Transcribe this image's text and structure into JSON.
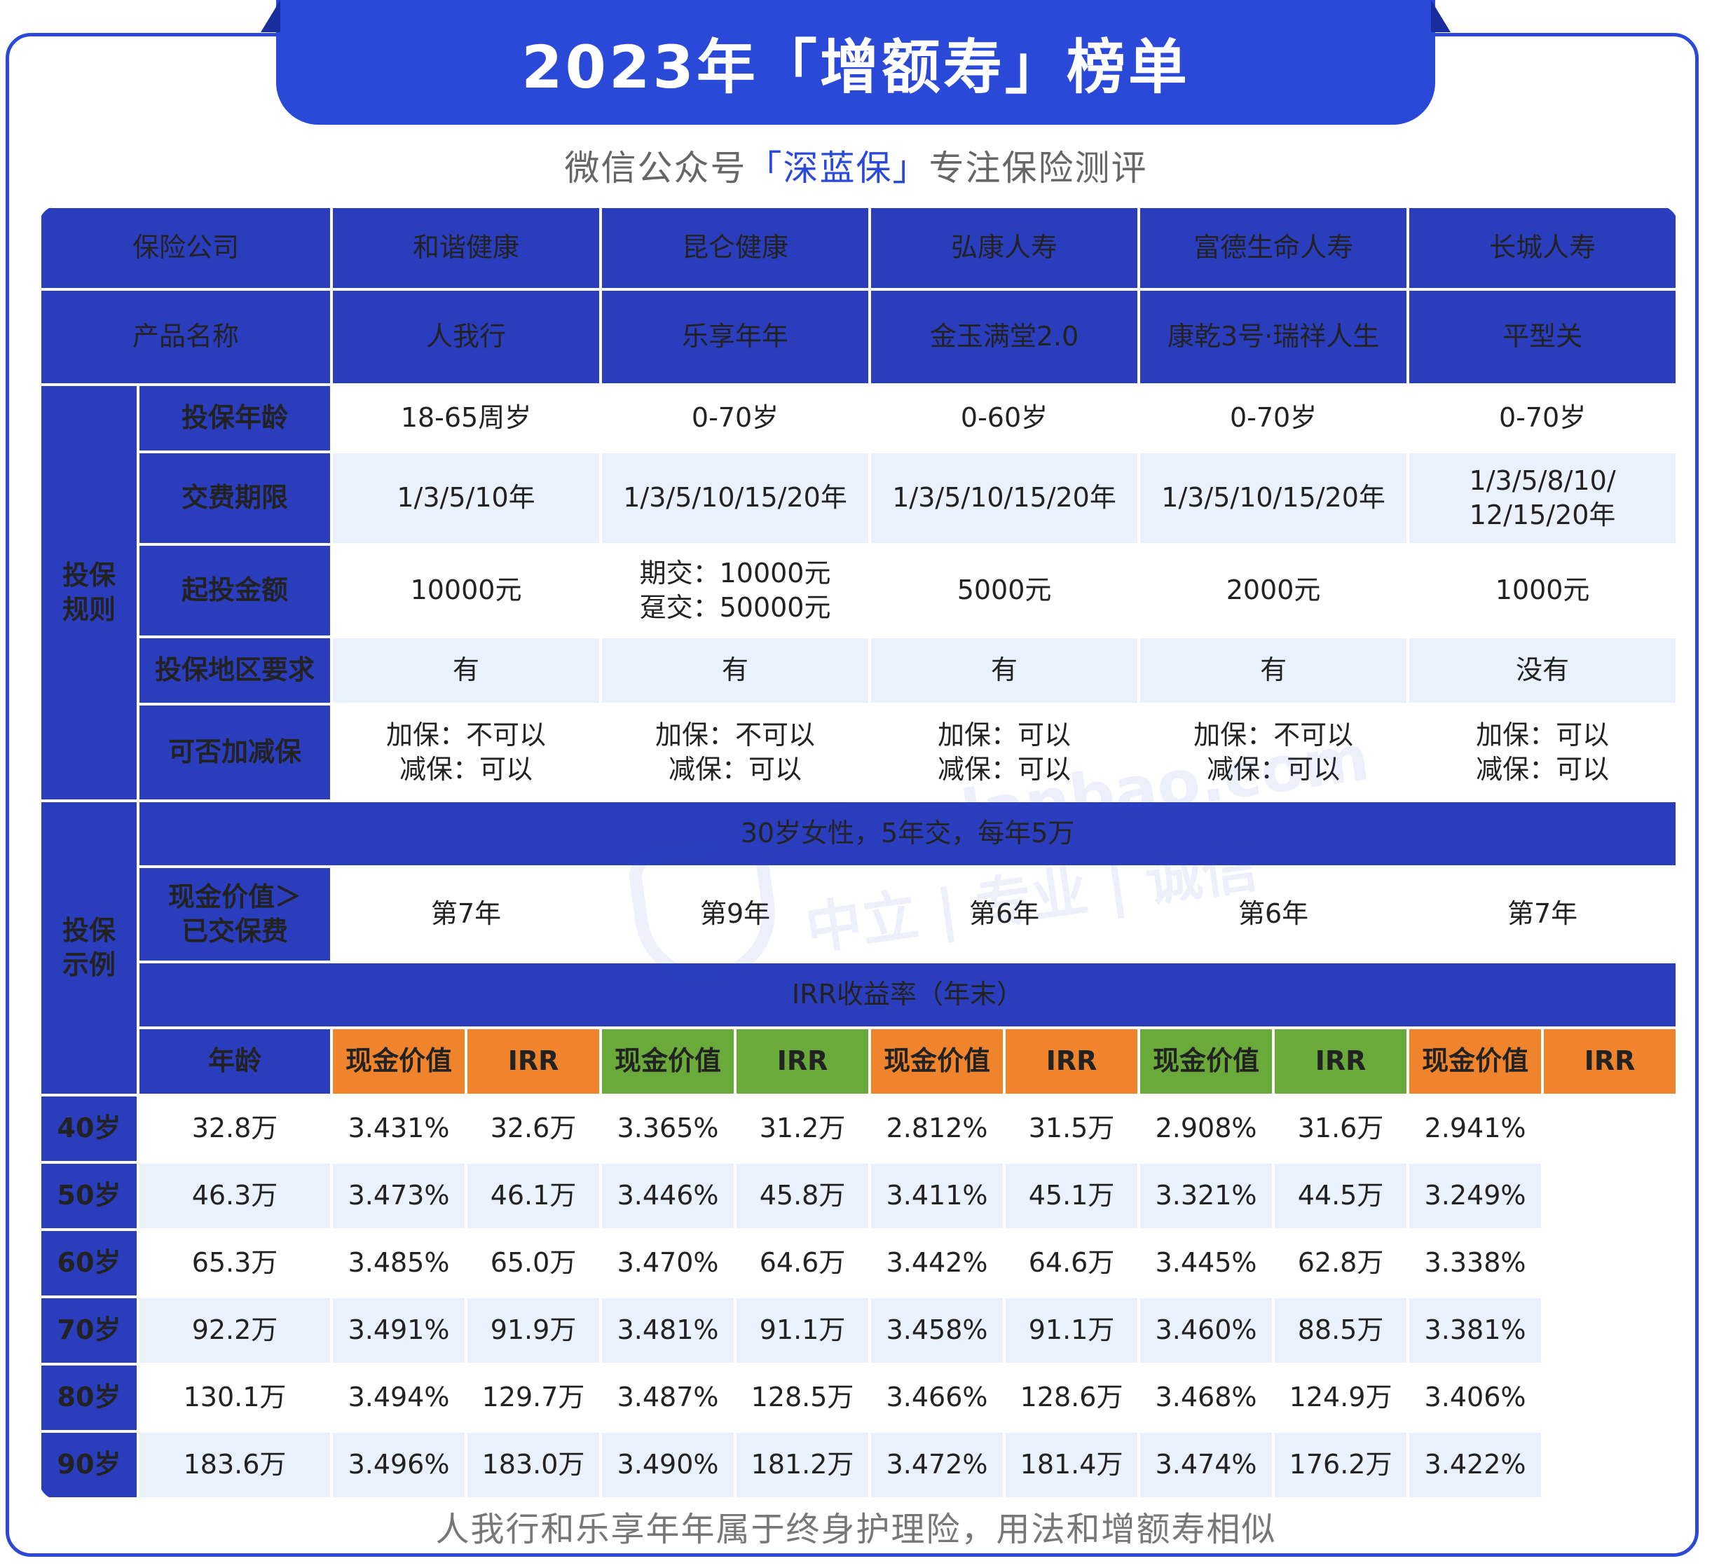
{
  "title": "2023年「增额寿」榜单",
  "subtitle": {
    "prefix": "微信公众号",
    "brand": "「深蓝保」",
    "suffix": "专注保险测评"
  },
  "watermark": {
    "line1": "shenlanbao.com",
    "line2": "中立 | 专业 | 诚信"
  },
  "header": {
    "company_label": "保险公司",
    "product_label": "产品名称",
    "companies": [
      "和谐健康",
      "昆仑健康",
      "弘康人寿",
      "富德生命人寿",
      "长城人寿"
    ],
    "products": [
      "人我行",
      "乐享年年",
      "金玉满堂2.0",
      "康乾3号·瑞祥人生",
      "平型关"
    ]
  },
  "rules": {
    "section_label": "投保规则",
    "rows": [
      {
        "label": "投保年龄",
        "values": [
          "18-65周岁",
          "0-70岁",
          "0-60岁",
          "0-70岁",
          "0-70岁"
        ]
      },
      {
        "label": "交费期限",
        "values": [
          "1/3/5/10年",
          "1/3/5/10/15/20年",
          "1/3/5/10/15/20年",
          "1/3/5/10/15/20年",
          "1/3/5/8/10/\n12/15/20年"
        ]
      },
      {
        "label": "起投金额",
        "values": [
          "10000元",
          "期交：10000元\n趸交：50000元",
          "5000元",
          "2000元",
          "1000元"
        ]
      },
      {
        "label": "投保地区要求",
        "values": [
          "有",
          "有",
          "有",
          "有",
          "没有"
        ]
      },
      {
        "label": "可否加减保",
        "values": [
          "加保：不可以\n减保：可以",
          "加保：不可以\n减保：可以",
          "加保：可以\n减保：可以",
          "加保：不可以\n减保：可以",
          "加保：可以\n减保：可以"
        ]
      }
    ]
  },
  "example": {
    "section_label": "投保示例",
    "scenario": "30岁女性，5年交，每年5万",
    "breakeven_label": "现金价值＞\n已交保费",
    "breakeven": [
      "第7年",
      "第9年",
      "第6年",
      "第6年",
      "第7年"
    ],
    "irr_band": "IRR收益率（年末）",
    "age_label": "年龄",
    "col_cash": "现金价值",
    "col_irr": "IRR",
    "rows": [
      {
        "age": "40岁",
        "cells": [
          "32.8万",
          "3.431%",
          "32.6万",
          "3.365%",
          "31.2万",
          "2.812%",
          "31.5万",
          "2.908%",
          "31.6万",
          "2.941%"
        ]
      },
      {
        "age": "50岁",
        "cells": [
          "46.3万",
          "3.473%",
          "46.1万",
          "3.446%",
          "45.8万",
          "3.411%",
          "45.1万",
          "3.321%",
          "44.5万",
          "3.249%"
        ]
      },
      {
        "age": "60岁",
        "cells": [
          "65.3万",
          "3.485%",
          "65.0万",
          "3.470%",
          "64.6万",
          "3.442%",
          "64.6万",
          "3.445%",
          "62.8万",
          "3.338%"
        ]
      },
      {
        "age": "70岁",
        "cells": [
          "92.2万",
          "3.491%",
          "91.9万",
          "3.481%",
          "91.1万",
          "3.458%",
          "91.1万",
          "3.460%",
          "88.5万",
          "3.381%"
        ]
      },
      {
        "age": "80岁",
        "cells": [
          "130.1万",
          "3.494%",
          "129.7万",
          "3.487%",
          "128.5万",
          "3.466%",
          "128.6万",
          "3.468%",
          "124.9万",
          "3.406%"
        ]
      },
      {
        "age": "90岁",
        "cells": [
          "183.6万",
          "3.496%",
          "183.0万",
          "3.490%",
          "181.2万",
          "3.472%",
          "181.4万",
          "3.474%",
          "176.2万",
          "3.422%"
        ]
      }
    ]
  },
  "footer": "人我行和乐享年年属于终身护理险，用法和增额寿相似",
  "colors": {
    "brand_blue": "#2a49d8",
    "header_blue": "#2a3ebd",
    "accent_yellow": "#ffd24a",
    "orange": "#f0842d",
    "green": "#6aaa3a",
    "highlight_red": "#e60012",
    "stripe": "#e9f1fd"
  }
}
